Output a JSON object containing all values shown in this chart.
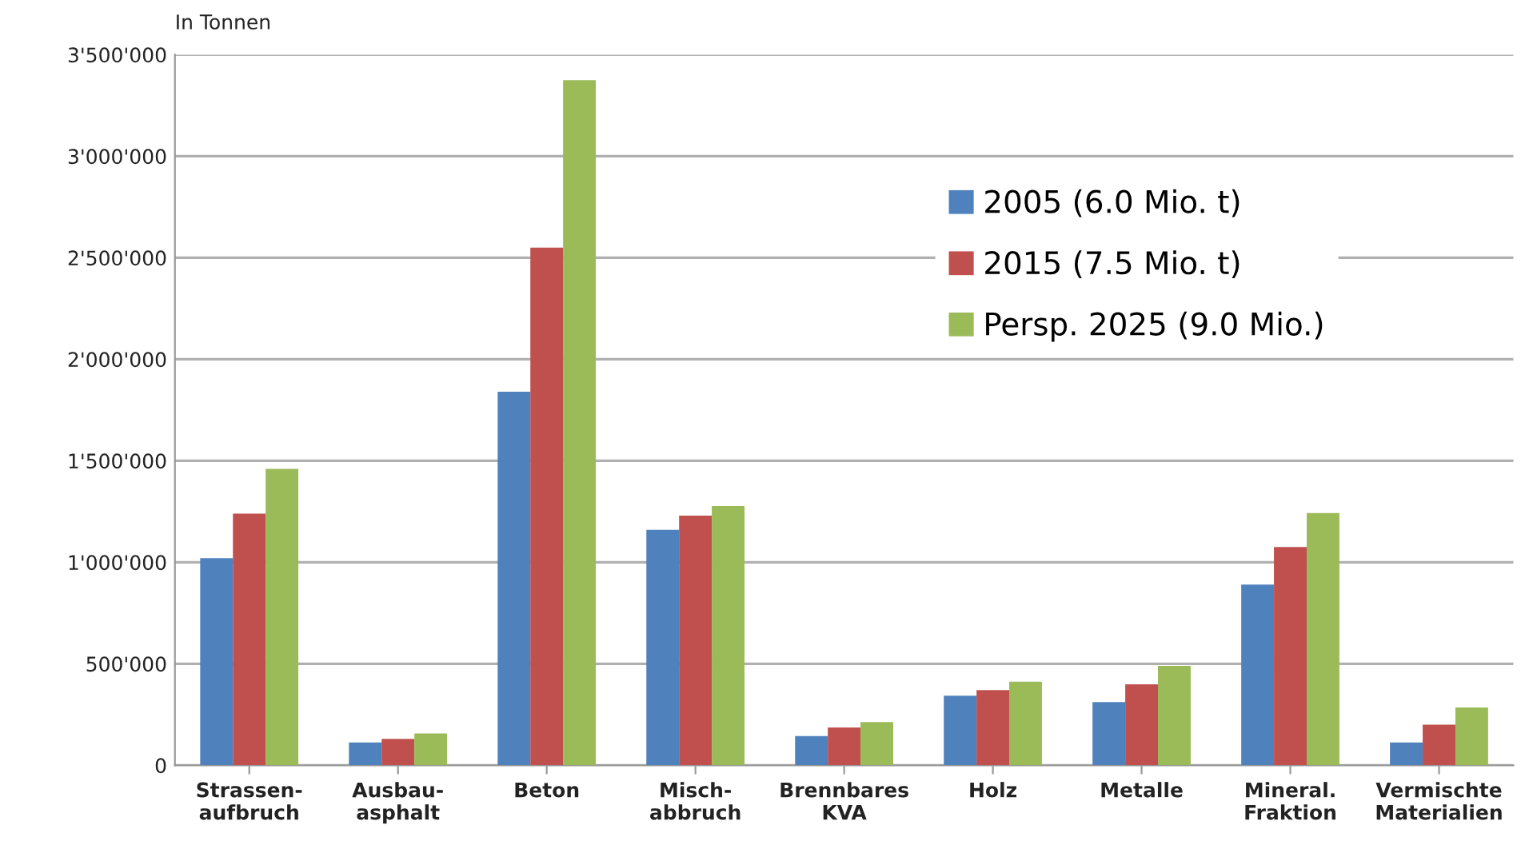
{
  "chart_data": {
    "type": "bar",
    "ylabel": "In Tonnen",
    "categories": [
      "Strassen-\naufbruch",
      "Ausbau-\nasphalt",
      "Beton",
      "Misch-\nabbruch",
      "Brennbares\nKVA",
      "Holz",
      "Metalle",
      "Mineral.\nFraktion",
      "Vermischte\nMaterialien"
    ],
    "series": [
      {
        "name": "2005 (6.0 Mio. t)",
        "color": "#4f81bd",
        "values": [
          1020000,
          112000,
          1840000,
          1160000,
          144000,
          343000,
          311000,
          890000,
          112000
        ]
      },
      {
        "name": "2015 (7.5 Mio. t)",
        "color": "#c0504d",
        "values": [
          1240000,
          130000,
          2550000,
          1230000,
          186000,
          370000,
          399000,
          1075000,
          200000
        ]
      },
      {
        "name": "Persp. 2025 (9.0 Mio.)",
        "color": "#9bbb59",
        "values": [
          1460000,
          157000,
          3375000,
          1277000,
          213000,
          412000,
          489000,
          1242000,
          285000
        ]
      }
    ],
    "ylim": [
      0,
      3500000
    ],
    "yticks": [
      {
        "value": 0,
        "label": "0"
      },
      {
        "value": 500000,
        "label": "500'000"
      },
      {
        "value": 1000000,
        "label": "1'000'000"
      },
      {
        "value": 1500000,
        "label": "1'500'000"
      },
      {
        "value": 2000000,
        "label": "2'000'000"
      },
      {
        "value": 2500000,
        "label": "2'500'000"
      },
      {
        "value": 3000000,
        "label": "3'000'000"
      },
      {
        "value": 3500000,
        "label": "3'500'000"
      }
    ],
    "grid": "y",
    "legend": "top right"
  }
}
